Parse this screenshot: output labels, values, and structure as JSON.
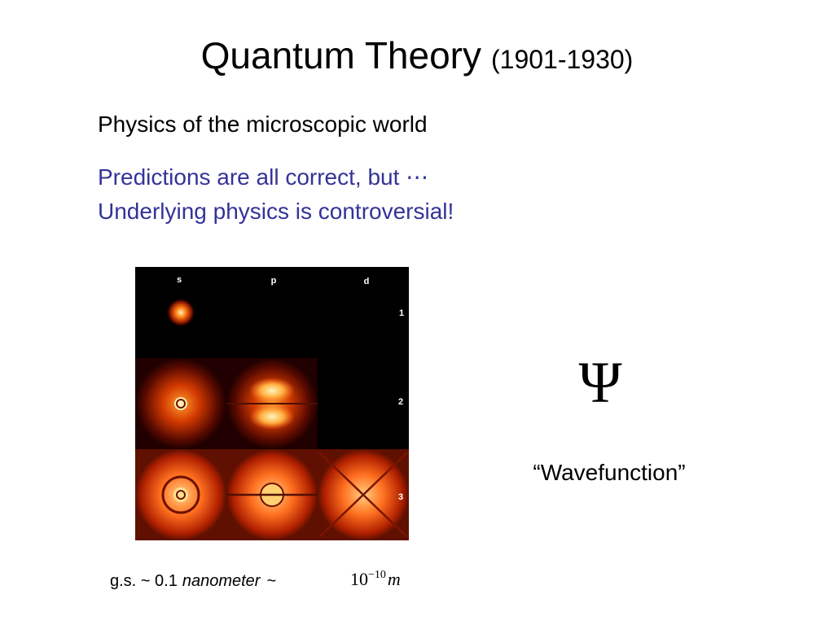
{
  "title": {
    "main": "Quantum Theory",
    "years": "(1901-1930)"
  },
  "body": {
    "heading": "Physics of the microscopic world",
    "lines": [
      "Predictions are all correct, but ⋯",
      "Underlying physics is controversial!"
    ]
  },
  "image": {
    "column_labels": [
      "s",
      "p",
      "d"
    ],
    "row_labels": [
      "1",
      "2",
      "3"
    ]
  },
  "symbol": {
    "glyph": "Ψ",
    "caption": "“Wavefunction”"
  },
  "footer": {
    "prefix": "g.s. ~ 0.1",
    "unit": "nanometer",
    "tilde": "~",
    "base": "10",
    "exponent": "−10",
    "meter": "m"
  }
}
